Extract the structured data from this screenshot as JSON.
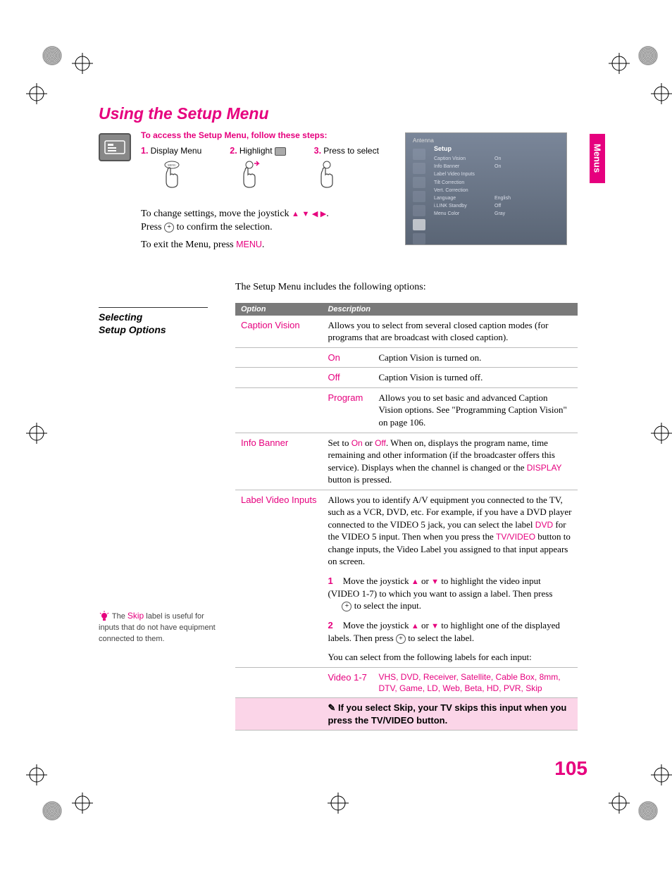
{
  "colors": {
    "magenta": "#e6007e",
    "header_gray": "#7a7a7a",
    "note_pink": "#fbd5e8",
    "text": "#000000",
    "background": "#ffffff"
  },
  "page_number": "105",
  "side_tab": "Menus",
  "title": "Using the Setup Menu",
  "access_intro": "To access the Setup Menu, follow these steps:",
  "steps": {
    "s1_num": "1.",
    "s1_label": "Display Menu",
    "s2_num": "2.",
    "s2_label": "Highlight",
    "s3_num": "3.",
    "s3_label": "Press to select"
  },
  "change_line_a": "To change settings, move the joystick ",
  "change_line_b": ".",
  "confirm_line_a": "Press ",
  "confirm_line_b": " to confirm the selection.",
  "exit_line_a": "To exit the Menu, press ",
  "exit_menu_word": "MENU",
  "exit_line_b": ".",
  "screenshot": {
    "antenna": "Antenna",
    "title": "Setup",
    "rows": [
      {
        "k": "Caption Vision",
        "v": "On"
      },
      {
        "k": "Info Banner",
        "v": "On"
      },
      {
        "k": "Label Video Inputs",
        "v": ""
      },
      {
        "k": "Tilt Correction",
        "v": ""
      },
      {
        "k": "Vert. Correction",
        "v": ""
      },
      {
        "k": "Language",
        "v": "English"
      },
      {
        "k": "i.LINK Standby",
        "v": "Off"
      },
      {
        "k": "Menu Color",
        "v": "Gray"
      }
    ]
  },
  "section_heading_l1": "Selecting",
  "section_heading_l2": "Setup Options",
  "options_intro": "The Setup Menu includes the following options:",
  "table": {
    "head_option": "Option",
    "head_description": "Description",
    "caption_vision": {
      "name": "Caption Vision",
      "desc": "Allows you to select from several closed caption modes (for programs that are broadcast with closed caption).",
      "on_name": "On",
      "on_desc": "Caption Vision is turned on.",
      "off_name": "Off",
      "off_desc": "Caption Vision is turned off.",
      "program_name": "Program",
      "program_desc": "Allows you to set basic and advanced Caption Vision options. See \"Programming Caption Vision\" on page 106."
    },
    "info_banner": {
      "name": "Info Banner",
      "desc_a": "Set to ",
      "on": "On",
      "or": " or ",
      "off": "Off",
      "desc_b": ". When on, displays the program name, time remaining and other information (if the broadcaster offers this service). Displays when the channel is changed or the ",
      "display": "DISPLAY",
      "desc_c": " button is pressed."
    },
    "label_video_inputs": {
      "name": "Label Video Inputs",
      "desc_a": "Allows you to identify A/V equipment you connected to the TV, such as a VCR, DVD, etc. For example, if you have a DVD player connected to the VIDEO 5 jack, you can select the label ",
      "dvd": "DVD",
      "desc_b": " for the VIDEO 5 input. Then when you press the ",
      "tvvideo": "TV/VIDEO",
      "desc_c": " button to change inputs, the Video Label you assigned to that input appears on screen.",
      "step1_num": "1",
      "step1_a": "Move the joystick ",
      "step1_b": " or ",
      "step1_c": " to highlight the video input (VIDEO 1-7) to which you want to assign a label. Then press ",
      "step1_d": " to select the input.",
      "step2_num": "2",
      "step2_a": "Move the joystick ",
      "step2_b": " or ",
      "step2_c": " to highlight one of the displayed labels. Then press ",
      "step2_d": " to select the label.",
      "can_select": "You can select from the following labels for each input:",
      "video17_name": "Video 1-7",
      "video17_desc": "VHS, DVD, Receiver, Satellite, Cable Box, 8mm, DTV, Game, LD, Web, Beta, HD, PVR, Skip",
      "note": "If you select Skip, your TV skips this input when you press the TV/VIDEO button."
    }
  },
  "tip": {
    "pre": " The ",
    "skip": "Skip",
    "post": " label is useful for inputs that do not have equipment connected to them."
  }
}
